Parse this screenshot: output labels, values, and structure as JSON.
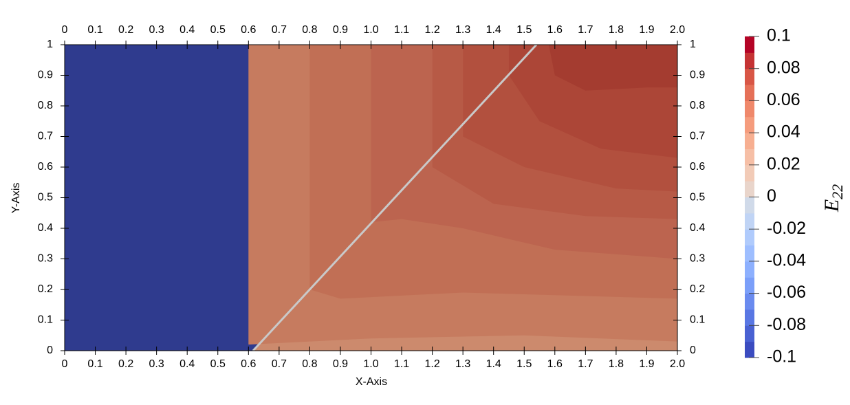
{
  "chart_data": {
    "type": "contour",
    "xlabel": "X-Axis",
    "ylabel": "Y-Axis",
    "xlim": [
      0,
      2
    ],
    "ylim": [
      0,
      1
    ],
    "xticks": [
      0,
      0.1,
      0.2,
      0.3,
      0.4,
      0.5,
      0.6,
      0.7,
      0.8,
      0.9,
      {
        "value": 1,
        "label": "1.0"
      },
      1.1,
      1.2,
      1.3,
      1.4,
      1.5,
      1.6,
      1.7,
      1.8,
      1.9,
      {
        "value": 2,
        "label": "2.0"
      }
    ],
    "yticks": [
      0,
      0.1,
      0.2,
      0.3,
      0.4,
      0.5,
      0.6,
      0.7,
      0.8,
      0.9,
      1
    ],
    "regions": [
      {
        "value": -0.1,
        "color": "#2f3b8e",
        "points": [
          [
            0,
            0
          ],
          [
            0.615,
            0
          ],
          [
            1.54,
            1
          ],
          [
            0,
            1
          ]
        ]
      },
      {
        "value": 0.03,
        "color": "#cc8a6d",
        "points": [
          [
            0.615,
            0
          ],
          [
            2,
            0
          ],
          [
            2,
            1
          ],
          [
            1.54,
            1
          ]
        ]
      },
      {
        "value": 0.035,
        "color": "#c67b5f",
        "points": [
          [
            0.6,
            0.02
          ],
          [
            1,
            0.04
          ],
          [
            1.5,
            0.05
          ],
          [
            2,
            0.03
          ],
          [
            2,
            1
          ],
          [
            0.6,
            1
          ]
        ]
      },
      {
        "value": 0.04,
        "color": "#c16f55",
        "points": [
          [
            0.8,
            0.2
          ],
          [
            0.9,
            0.17
          ],
          [
            1.3,
            0.19
          ],
          [
            2,
            0.17
          ],
          [
            2,
            1
          ],
          [
            0.8,
            1
          ]
        ]
      },
      {
        "value": 0.045,
        "color": "#bc644f",
        "points": [
          [
            1,
            0.42
          ],
          [
            1.1,
            0.43
          ],
          [
            1.3,
            0.4
          ],
          [
            1.6,
            0.33
          ],
          [
            2,
            0.3
          ],
          [
            2,
            1
          ],
          [
            1,
            1
          ]
        ]
      },
      {
        "value": 0.05,
        "color": "#b75a46",
        "points": [
          [
            1.2,
            0.6
          ],
          [
            1.4,
            0.48
          ],
          [
            1.7,
            0.44
          ],
          [
            2,
            0.43
          ],
          [
            2,
            1
          ],
          [
            1.2,
            1
          ]
        ]
      },
      {
        "value": 0.055,
        "color": "#b2503e",
        "points": [
          [
            1.3,
            0.7
          ],
          [
            1.5,
            0.6
          ],
          [
            1.8,
            0.53
          ],
          [
            2,
            0.52
          ],
          [
            2,
            1
          ],
          [
            1.3,
            1
          ]
        ]
      },
      {
        "value": 0.06,
        "color": "#ac4637",
        "points": [
          [
            1.45,
            0.9
          ],
          [
            1.55,
            0.75
          ],
          [
            1.75,
            0.66
          ],
          [
            2,
            0.63
          ],
          [
            2,
            1
          ],
          [
            1.45,
            1
          ]
        ]
      },
      {
        "value": 0.065,
        "color": "#a43c30",
        "points": [
          [
            1.58,
            1
          ],
          [
            1.6,
            0.9
          ],
          [
            1.7,
            0.85
          ],
          [
            1.9,
            0.86
          ],
          [
            2,
            0.86
          ],
          [
            2,
            1
          ]
        ]
      }
    ],
    "colorbar": {
      "label": "E",
      "label_sub": "22",
      "lim": [
        -0.1,
        0.1
      ],
      "ticks": [
        -0.1,
        -0.08,
        -0.06,
        -0.04,
        -0.02,
        0,
        0.02,
        0.04,
        0.06,
        0.08,
        0.1
      ],
      "colors": [
        "#3b4cc0",
        "#4961d2",
        "#5977e3",
        "#6a8bef",
        "#7b9ff9",
        "#8db0fe",
        "#9ebeff",
        "#b0cbfc",
        "#c0d4f5",
        "#d0dae9",
        "#e9d5cb",
        "#f2cbb7",
        "#f6bfa6",
        "#f7af91",
        "#f59c7d",
        "#ef886b",
        "#e57058",
        "#d85646",
        "#c53334",
        "#b40426"
      ]
    }
  }
}
